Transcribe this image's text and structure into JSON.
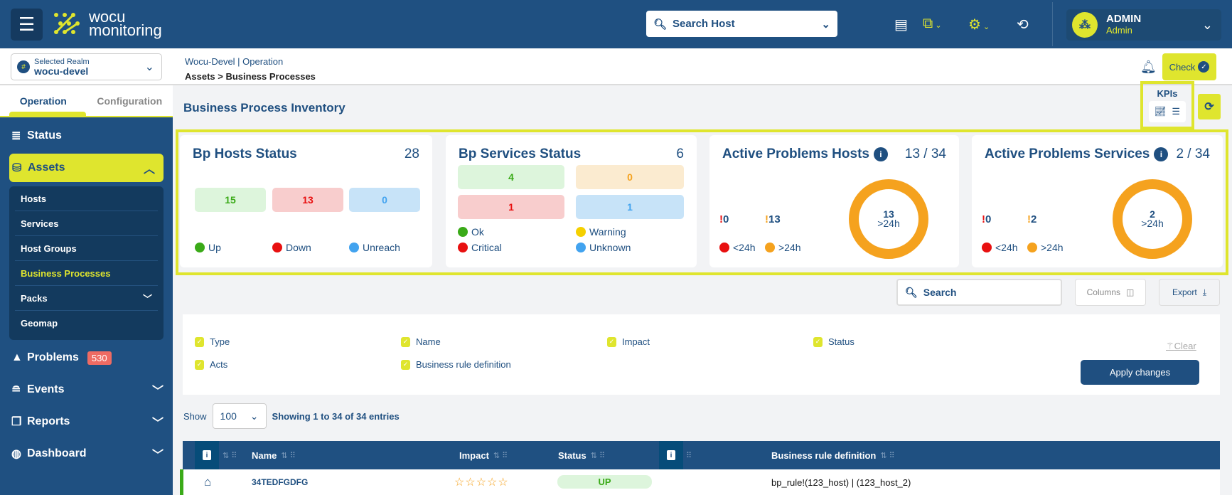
{
  "header": {
    "logo_text_1": "wocu",
    "logo_text_2": "monitoring",
    "search_placeholder": "Search Host",
    "user": {
      "name": "ADMIN",
      "role": "Admin"
    },
    "icons": [
      "menu-icon",
      "book-icon",
      "external-link-icon",
      "gears-icon",
      "no-sync-icon",
      "chevron-down-icon"
    ]
  },
  "realm": {
    "label": "Selected Realm",
    "value": "wocu-devel"
  },
  "breadcrumb": {
    "line1": "Wocu-Devel | Operation",
    "line2": "Assets > Business Processes"
  },
  "check_label": "Check",
  "sidebar": {
    "tabs": [
      "Operation",
      "Configuration"
    ],
    "status": "Status",
    "assets": "Assets",
    "sub_items": [
      "Hosts",
      "Services",
      "Host Groups",
      "Business Processes",
      "Packs",
      "Geomap"
    ],
    "problems": "Problems",
    "problems_count": "530",
    "events": "Events",
    "reports": "Reports",
    "dashboard": "Dashboard"
  },
  "page_title": "Business Process Inventory",
  "kpis_label": "KPIs",
  "cards": {
    "hosts": {
      "title": "Bp Hosts Status",
      "total": "28",
      "up": "15",
      "down": "13",
      "unreach": "0",
      "legend": [
        "Up",
        "Down",
        "Unreach"
      ]
    },
    "services": {
      "title": "Bp Services Status",
      "total": "6",
      "ok": "4",
      "warning": "0",
      "critical": "1",
      "unknown": "1",
      "legend": [
        "Ok",
        "Warning",
        "Critical",
        "Unknown"
      ]
    },
    "problems_hosts": {
      "title": "Active Problems Hosts",
      "ratio": "13 / 34",
      "lt24": "0",
      "gt24": "13",
      "ring_value": "13",
      "ring_label": ">24h",
      "legend": [
        "<24h",
        ">24h"
      ]
    },
    "problems_services": {
      "title": "Active Problems Services",
      "ratio": "2 / 34",
      "lt24": "0",
      "gt24": "2",
      "ring_value": "2",
      "ring_label": ">24h",
      "legend": [
        "<24h",
        ">24h"
      ]
    }
  },
  "colors": {
    "primary": "#1f5081",
    "accent": "#dfe52e",
    "up": "#3aaa18",
    "down": "#e81010",
    "unreach": "#42a3ef",
    "warning": "#f5c400",
    "aged": "#f5a21e"
  },
  "toolbar": {
    "search_placeholder": "Search",
    "columns": "Columns",
    "export": "Export"
  },
  "column_panel": {
    "options": [
      "Type",
      "Name",
      "Impact",
      "Status",
      "Acts",
      "Business rule definition"
    ],
    "clear": "Clear",
    "apply": "Apply changes"
  },
  "pagination": {
    "show": "Show",
    "page_size": "100",
    "showing": "Showing 1 to 34 of 34 entries"
  },
  "table": {
    "columns": [
      "Name",
      "Impact",
      "Status",
      "Business rule definition"
    ],
    "rows": [
      {
        "name": "34TEDFGDFG",
        "impact_stars": 0,
        "impact": "☆☆☆☆☆",
        "status": "UP",
        "rule": "bp_rule!(123_host) | (123_host_2)"
      }
    ]
  }
}
